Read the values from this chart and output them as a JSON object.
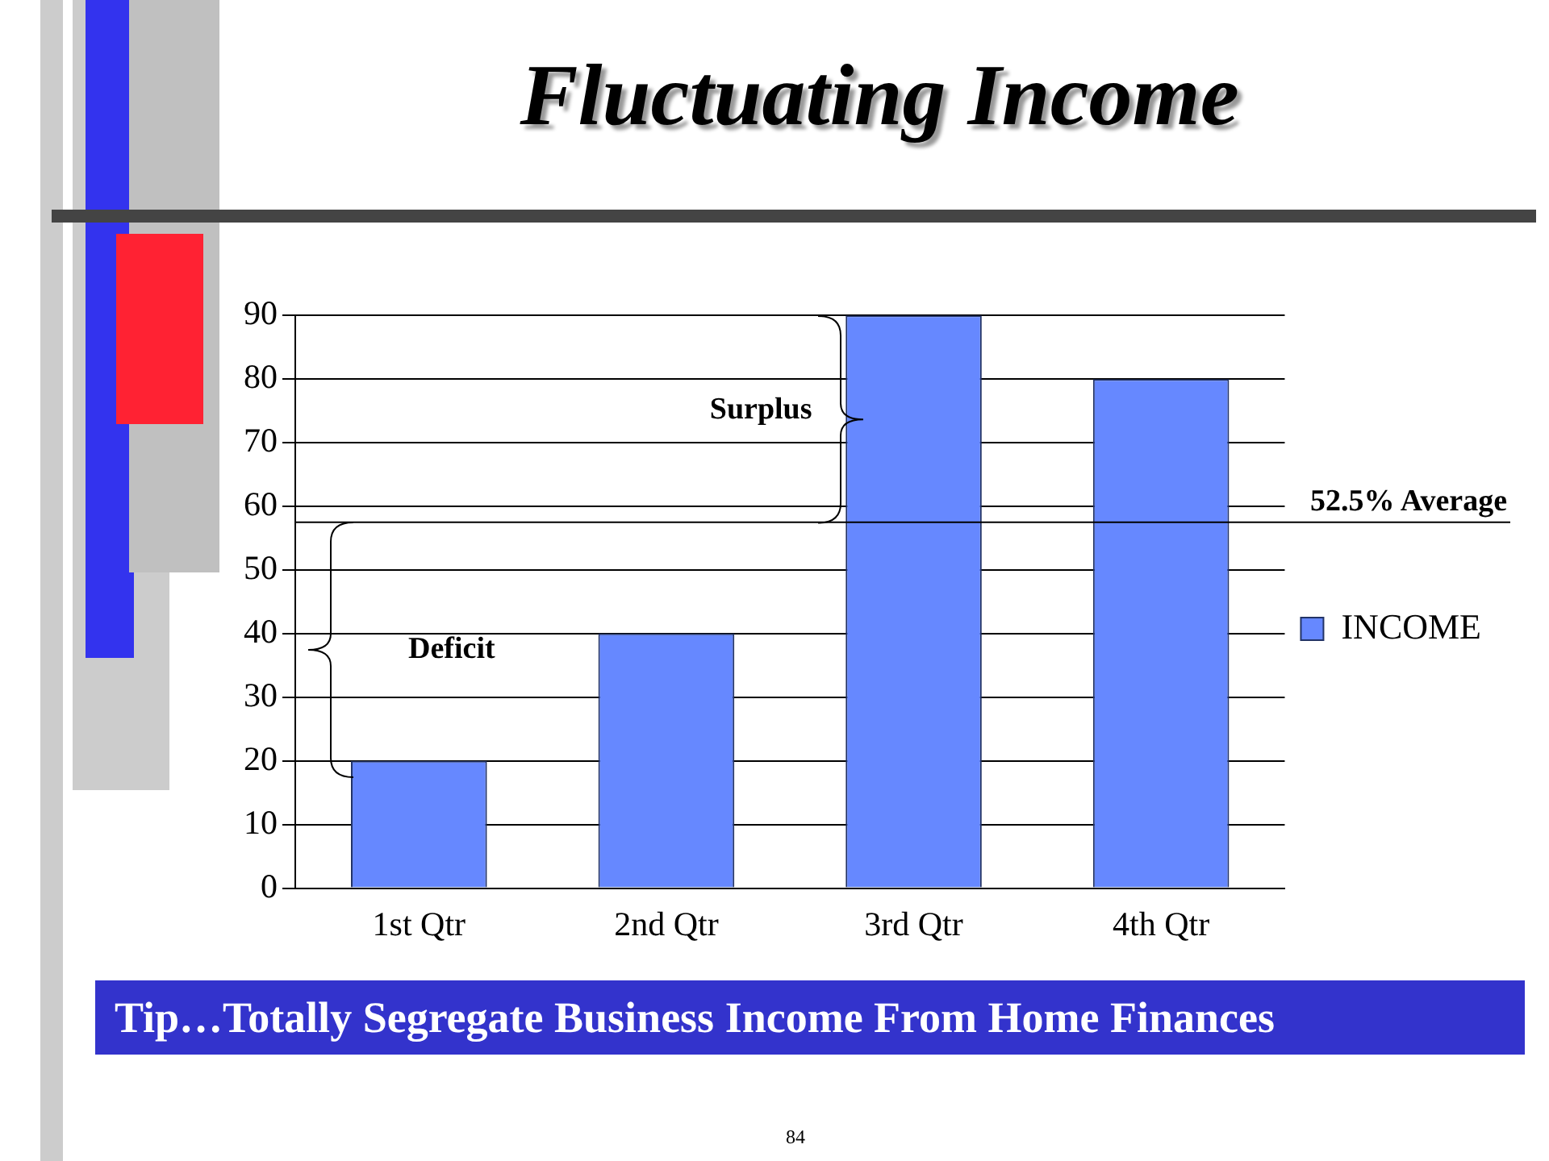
{
  "chart_data": {
    "type": "bar",
    "title": "Fluctuating Income",
    "categories": [
      "1st Qtr",
      "2nd Qtr",
      "3rd Qtr",
      "4th Qtr"
    ],
    "series": [
      {
        "name": "INCOME",
        "color": "#6688ff",
        "values": [
          20,
          40,
          90,
          80
        ]
      }
    ],
    "ylim": [
      0,
      90
    ],
    "yticks": [
      0,
      10,
      20,
      30,
      40,
      50,
      60,
      70,
      80,
      90
    ],
    "grid": "y",
    "legend": "right",
    "ref_lines": [
      {
        "axis": "y",
        "value": 57.5,
        "label": "52.5% Average",
        "color": "#000000"
      }
    ],
    "annotations": [
      "Surplus",
      "Deficit",
      "Tip…Totally Segregate Business Income From Home Finances",
      "84"
    ]
  }
}
